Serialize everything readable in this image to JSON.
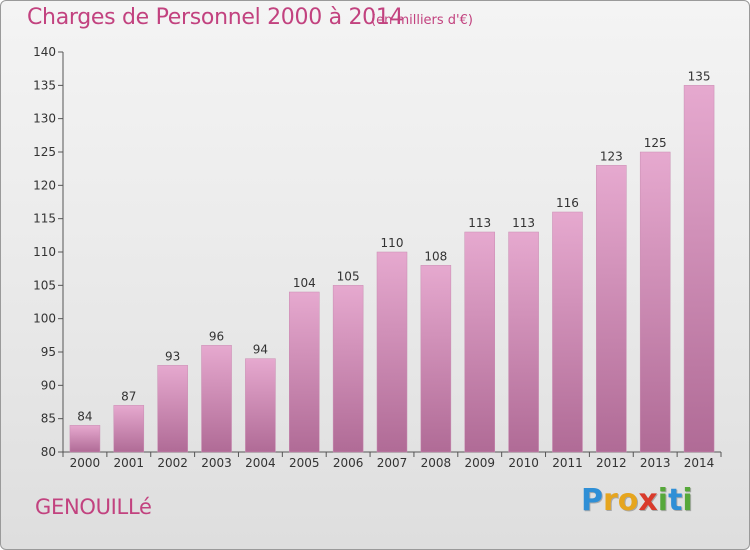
{
  "title": "Charges de Personnel 2000 à 2014",
  "subtitle": "(en milliers d'€)",
  "place": "GENOUILLé",
  "logo": {
    "letters": [
      "P",
      "r",
      "o",
      "x",
      "i",
      "t",
      "i"
    ],
    "colors": [
      "#2f8fd6",
      "#e6a51e",
      "#e6a51e",
      "#d93a2b",
      "#56a83a",
      "#2f8fd6",
      "#56a83a"
    ]
  },
  "colors": {
    "accent": "#c2427f",
    "bar_top": "#e6a9cf",
    "bar_bottom": "#b06b96",
    "axis": "#555555",
    "grid": "#d0d0d0"
  },
  "chart_data": {
    "type": "bar",
    "categories": [
      "2000",
      "2001",
      "2002",
      "2003",
      "2004",
      "2005",
      "2006",
      "2007",
      "2008",
      "2009",
      "2010",
      "2011",
      "2012",
      "2013",
      "2014"
    ],
    "values": [
      84,
      87,
      93,
      96,
      94,
      104,
      105,
      110,
      108,
      113,
      113,
      116,
      123,
      125,
      135
    ],
    "title": "Charges de Personnel 2000 à 2014",
    "subtitle": "(en milliers d'€)",
    "xlabel": "",
    "ylabel": "",
    "ylim": [
      80,
      140
    ],
    "yticks": [
      80,
      85,
      90,
      95,
      100,
      105,
      110,
      115,
      120,
      125,
      130,
      135,
      140
    ],
    "grid": false,
    "data_labels": true
  }
}
